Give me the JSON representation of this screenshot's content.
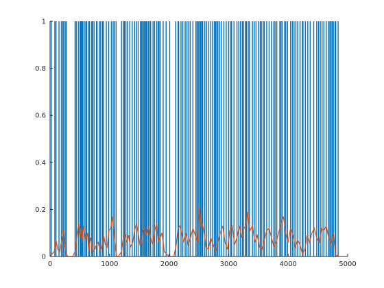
{
  "chart_data": {
    "type": "line",
    "title": "",
    "xlabel": "",
    "ylabel": "",
    "xlim": [
      0,
      5000
    ],
    "ylim": [
      0,
      1
    ],
    "x_ticks": [
      0,
      1000,
      2000,
      3000,
      4000,
      5000
    ],
    "x_tick_labels": [
      "0",
      "1000",
      "2000",
      "3000",
      "4000",
      "5000"
    ],
    "y_ticks": [
      0,
      0.2,
      0.4,
      0.6,
      0.8,
      1
    ],
    "y_tick_labels": [
      "0",
      "0.2",
      "0.4",
      "0.6",
      "0.8",
      "1"
    ],
    "grid": false,
    "series": [
      {
        "color": "#0072BD",
        "style": "binary spike train (0 or 1)",
        "x": [
          20,
          80,
          100,
          150,
          190,
          215,
          230,
          255,
          275,
          420,
          440,
          475,
          505,
          520,
          535,
          550,
          575,
          600,
          615,
          650,
          665,
          700,
          715,
          740,
          780,
          790,
          830,
          850,
          880,
          900,
          945,
          985,
          1030,
          1060,
          1085,
          1110,
          1200,
          1230,
          1250,
          1275,
          1300,
          1340,
          1380,
          1420,
          1455,
          1480,
          1520,
          1535,
          1550,
          1575,
          1590,
          1610,
          1625,
          1650,
          1665,
          1690,
          1730,
          1755,
          1790,
          1815,
          1830,
          1850,
          1900,
          1950,
          2010,
          2110,
          2150,
          2160,
          2200,
          2230,
          2270,
          2300,
          2330,
          2355,
          2400,
          2450,
          2470,
          2490,
          2510,
          2530,
          2550,
          2565,
          2600,
          2630,
          2660,
          2700,
          2730,
          2760,
          2780,
          2800,
          2820,
          2850,
          2880,
          2920,
          2960,
          3000,
          3030,
          3050,
          3090,
          3140,
          3170,
          3200,
          3230,
          3250,
          3280,
          3300,
          3330,
          3350,
          3400,
          3430,
          3460,
          3500,
          3530,
          3550,
          3580,
          3600,
          3640,
          3680,
          3720,
          3760,
          3780,
          3810,
          3860,
          3880,
          3900,
          3940,
          3960,
          3990,
          4040,
          4070,
          4100,
          4130,
          4160,
          4200,
          4240,
          4250,
          4290,
          4330,
          4370,
          4430,
          4480,
          4510,
          4540,
          4570,
          4600,
          4640,
          4680,
          4700,
          4720,
          4740,
          4760,
          4790,
          4800,
          4840
        ],
        "values": "1 at each x listed above, 0 elsewhere"
      },
      {
        "color": "#D95319",
        "style": "smoothed rate line",
        "x": [
          0,
          30,
          70,
          100,
          130,
          160,
          190,
          230,
          250,
          270,
          300,
          330,
          380,
          420,
          450,
          480,
          500,
          520,
          540,
          560,
          580,
          600,
          630,
          650,
          680,
          700,
          720,
          750,
          780,
          810,
          840,
          870,
          900,
          930,
          960,
          990,
          1020,
          1050,
          1080,
          1100,
          1120,
          1150,
          1200,
          1230,
          1260,
          1290,
          1320,
          1350,
          1390,
          1420,
          1450,
          1480,
          1510,
          1540,
          1560,
          1590,
          1620,
          1660,
          1700,
          1730,
          1760,
          1790,
          1820,
          1850,
          1880,
          1920,
          1960,
          2000,
          2040,
          2080,
          2120,
          2150,
          2180,
          2210,
          2240,
          2280,
          2320,
          2360,
          2400,
          2440,
          2480,
          2510,
          2540,
          2560,
          2590,
          2620,
          2660,
          2700,
          2740,
          2780,
          2820,
          2860,
          2900,
          2940,
          2980,
          3020,
          3060,
          3100,
          3140,
          3180,
          3220,
          3260,
          3300,
          3320,
          3360,
          3400,
          3440,
          3480,
          3520,
          3560,
          3600,
          3640,
          3680,
          3720,
          3760,
          3800,
          3840,
          3880,
          3920,
          3960,
          4000,
          4040,
          4080,
          4120,
          4160,
          4200,
          4240,
          4280,
          4320,
          4360,
          4400,
          4440,
          4480,
          4520,
          4560,
          4600,
          4640,
          4680,
          4720,
          4760,
          4800,
          4850
        ],
        "values": [
          0,
          0.01,
          0.02,
          0.07,
          0.03,
          0.02,
          0.06,
          0.11,
          0.04,
          0.01,
          0,
          0,
          0,
          0.02,
          0.09,
          0.14,
          0.08,
          0.12,
          0.06,
          0.13,
          0.1,
          0.07,
          0.1,
          0.02,
          0.08,
          0.06,
          0.02,
          0.03,
          0.05,
          0.06,
          0.02,
          0.04,
          0.09,
          0.05,
          0.04,
          0.11,
          0.12,
          0.17,
          0.08,
          0.03,
          0,
          0,
          0.02,
          0.08,
          0.09,
          0.06,
          0.09,
          0.04,
          0.06,
          0.11,
          0.14,
          0.1,
          0.05,
          0.06,
          0.11,
          0.12,
          0.09,
          0.13,
          0.07,
          0.05,
          0.11,
          0.14,
          0.06,
          0.08,
          0.1,
          0.02,
          0.01,
          0,
          0,
          0,
          0.05,
          0.12,
          0.13,
          0.1,
          0.06,
          0.1,
          0.05,
          0.08,
          0.12,
          0.09,
          0.06,
          0.21,
          0.12,
          0.14,
          0.1,
          0.04,
          0.03,
          0.08,
          0.05,
          0.02,
          0.06,
          0.1,
          0.13,
          0.06,
          0.03,
          0.11,
          0.13,
          0.05,
          0.08,
          0.13,
          0.08,
          0.12,
          0.14,
          0.19,
          0.11,
          0.13,
          0.06,
          0.09,
          0.04,
          0.03,
          0.07,
          0.11,
          0.12,
          0.08,
          0.04,
          0.06,
          0.1,
          0.14,
          0.17,
          0.1,
          0.06,
          0.12,
          0.09,
          0.04,
          0.07,
          0.05,
          0.01,
          0.03,
          0.09,
          0.06,
          0.1,
          0.12,
          0.08,
          0.06,
          0.12,
          0.11,
          0.13,
          0.08,
          0.05,
          0.1,
          0,
          0.01
        ]
      }
    ]
  }
}
